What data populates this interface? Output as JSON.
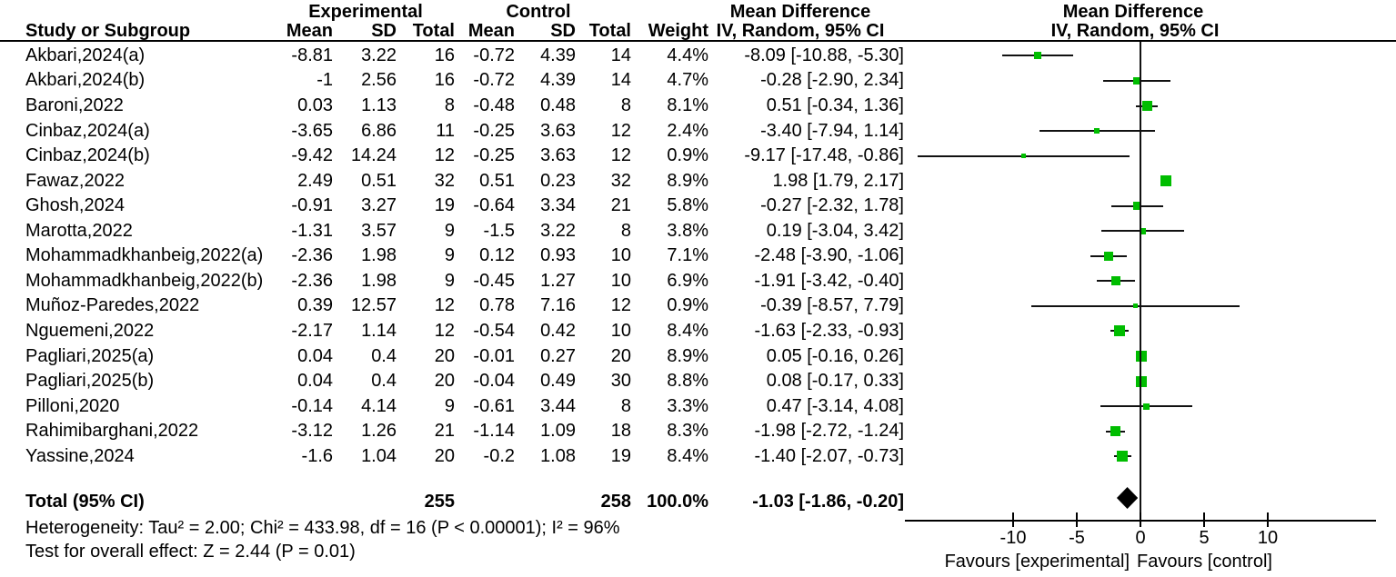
{
  "header": {
    "study_col": "Study or Subgroup",
    "group_experimental": "Experimental",
    "group_control": "Control",
    "col_mean": "Mean",
    "col_sd": "SD",
    "col_total": "Total",
    "col_weight": "Weight",
    "md_title": "Mean Difference",
    "md_subtitle": "IV, Random, 95% CI"
  },
  "colors": {
    "marker_green": "#00bd00",
    "line_black": "#111111",
    "diamond_black": "#000000"
  },
  "chart_data": {
    "type": "forest",
    "effect_measure": "Mean Difference",
    "method": "IV, Random, 95% CI",
    "axis": {
      "min": -18.5,
      "max": 18.5,
      "tick_values": [
        -10,
        -5,
        0,
        5,
        10
      ],
      "tick_labels": [
        "-10",
        "-5",
        "0",
        "5",
        "10"
      ],
      "favours_left": "Favours [experimental]",
      "favours_right": "Favours [control]"
    },
    "studies": [
      {
        "name": "Akbari,2024(a)",
        "mean_e": "-8.81",
        "sd_e": "3.22",
        "total_e": "16",
        "mean_c": "-0.72",
        "sd_c": "4.39",
        "total_c": "14",
        "weight": "4.4%",
        "ci_text": "-8.09 [-10.88, -5.30]",
        "md": -8.09,
        "lo": -10.88,
        "hi": -5.3,
        "weight_pct": 4.4
      },
      {
        "name": "Akbari,2024(b)",
        "mean_e": "-1",
        "sd_e": "2.56",
        "total_e": "16",
        "mean_c": "-0.72",
        "sd_c": "4.39",
        "total_c": "14",
        "weight": "4.7%",
        "ci_text": "-0.28 [-2.90, 2.34]",
        "md": -0.28,
        "lo": -2.9,
        "hi": 2.34,
        "weight_pct": 4.7
      },
      {
        "name": "Baroni,2022",
        "mean_e": "0.03",
        "sd_e": "1.13",
        "total_e": "8",
        "mean_c": "-0.48",
        "sd_c": "0.48",
        "total_c": "8",
        "weight": "8.1%",
        "ci_text": "0.51 [-0.34, 1.36]",
        "md": 0.51,
        "lo": -0.34,
        "hi": 1.36,
        "weight_pct": 8.1
      },
      {
        "name": "Cinbaz,2024(a)",
        "mean_e": "-3.65",
        "sd_e": "6.86",
        "total_e": "11",
        "mean_c": "-0.25",
        "sd_c": "3.63",
        "total_c": "12",
        "weight": "2.4%",
        "ci_text": "-3.40 [-7.94, 1.14]",
        "md": -3.4,
        "lo": -7.94,
        "hi": 1.14,
        "weight_pct": 2.4
      },
      {
        "name": "Cinbaz,2024(b)",
        "mean_e": "-9.42",
        "sd_e": "14.24",
        "total_e": "12",
        "mean_c": "-0.25",
        "sd_c": "3.63",
        "total_c": "12",
        "weight": "0.9%",
        "ci_text": "-9.17 [-17.48, -0.86]",
        "md": -9.17,
        "lo": -17.48,
        "hi": -0.86,
        "weight_pct": 0.9
      },
      {
        "name": "Fawaz,2022",
        "mean_e": "2.49",
        "sd_e": "0.51",
        "total_e": "32",
        "mean_c": "0.51",
        "sd_c": "0.23",
        "total_c": "32",
        "weight": "8.9%",
        "ci_text": "1.98 [1.79, 2.17]",
        "md": 1.98,
        "lo": 1.79,
        "hi": 2.17,
        "weight_pct": 8.9
      },
      {
        "name": "Ghosh,2024",
        "mean_e": "-0.91",
        "sd_e": "3.27",
        "total_e": "19",
        "mean_c": "-0.64",
        "sd_c": "3.34",
        "total_c": "21",
        "weight": "5.8%",
        "ci_text": "-0.27 [-2.32, 1.78]",
        "md": -0.27,
        "lo": -2.32,
        "hi": 1.78,
        "weight_pct": 5.8
      },
      {
        "name": "Marotta,2022",
        "mean_e": "-1.31",
        "sd_e": "3.57",
        "total_e": "9",
        "mean_c": "-1.5",
        "sd_c": "3.22",
        "total_c": "8",
        "weight": "3.8%",
        "ci_text": "0.19 [-3.04, 3.42]",
        "md": 0.19,
        "lo": -3.04,
        "hi": 3.42,
        "weight_pct": 3.8
      },
      {
        "name": "Mohammadkhanbeig,2022(a)",
        "mean_e": "-2.36",
        "sd_e": "1.98",
        "total_e": "9",
        "mean_c": "0.12",
        "sd_c": "0.93",
        "total_c": "10",
        "weight": "7.1%",
        "ci_text": "-2.48 [-3.90, -1.06]",
        "md": -2.48,
        "lo": -3.9,
        "hi": -1.06,
        "weight_pct": 7.1
      },
      {
        "name": "Mohammadkhanbeig,2022(b)",
        "mean_e": "-2.36",
        "sd_e": "1.98",
        "total_e": "9",
        "mean_c": "-0.45",
        "sd_c": "1.27",
        "total_c": "10",
        "weight": "6.9%",
        "ci_text": "-1.91 [-3.42, -0.40]",
        "md": -1.91,
        "lo": -3.42,
        "hi": -0.4,
        "weight_pct": 6.9
      },
      {
        "name": "Muñoz-Paredes,2022",
        "mean_e": "0.39",
        "sd_e": "12.57",
        "total_e": "12",
        "mean_c": "0.78",
        "sd_c": "7.16",
        "total_c": "12",
        "weight": "0.9%",
        "ci_text": "-0.39 [-8.57, 7.79]",
        "md": -0.39,
        "lo": -8.57,
        "hi": 7.79,
        "weight_pct": 0.9
      },
      {
        "name": "Nguemeni,2022",
        "mean_e": "-2.17",
        "sd_e": "1.14",
        "total_e": "12",
        "mean_c": "-0.54",
        "sd_c": "0.42",
        "total_c": "10",
        "weight": "8.4%",
        "ci_text": "-1.63 [-2.33, -0.93]",
        "md": -1.63,
        "lo": -2.33,
        "hi": -0.93,
        "weight_pct": 8.4
      },
      {
        "name": "Pagliari,2025(a)",
        "mean_e": "0.04",
        "sd_e": "0.4",
        "total_e": "20",
        "mean_c": "-0.01",
        "sd_c": "0.27",
        "total_c": "20",
        "weight": "8.9%",
        "ci_text": "0.05 [-0.16, 0.26]",
        "md": 0.05,
        "lo": -0.16,
        "hi": 0.26,
        "weight_pct": 8.9
      },
      {
        "name": "Pagliari,2025(b)",
        "mean_e": "0.04",
        "sd_e": "0.4",
        "total_e": "20",
        "mean_c": "-0.04",
        "sd_c": "0.49",
        "total_c": "30",
        "weight": "8.8%",
        "ci_text": "0.08 [-0.17, 0.33]",
        "md": 0.08,
        "lo": -0.17,
        "hi": 0.33,
        "weight_pct": 8.8
      },
      {
        "name": "Pilloni,2020",
        "mean_e": "-0.14",
        "sd_e": "4.14",
        "total_e": "9",
        "mean_c": "-0.61",
        "sd_c": "3.44",
        "total_c": "8",
        "weight": "3.3%",
        "ci_text": "0.47 [-3.14, 4.08]",
        "md": 0.47,
        "lo": -3.14,
        "hi": 4.08,
        "weight_pct": 3.3
      },
      {
        "name": "Rahimibarghani,2022",
        "mean_e": "-3.12",
        "sd_e": "1.26",
        "total_e": "21",
        "mean_c": "-1.14",
        "sd_c": "1.09",
        "total_c": "18",
        "weight": "8.3%",
        "ci_text": "-1.98 [-2.72, -1.24]",
        "md": -1.98,
        "lo": -2.72,
        "hi": -1.24,
        "weight_pct": 8.3
      },
      {
        "name": "Yassine,2024",
        "mean_e": "-1.6",
        "sd_e": "1.04",
        "total_e": "20",
        "mean_c": "-0.2",
        "sd_c": "1.08",
        "total_c": "19",
        "weight": "8.4%",
        "ci_text": "-1.40 [-2.07, -0.73]",
        "md": -1.4,
        "lo": -2.07,
        "hi": -0.73,
        "weight_pct": 8.4
      }
    ],
    "total": {
      "label": "Total (95% CI)",
      "total_e": "255",
      "total_c": "258",
      "weight": "100.0%",
      "ci_text": "-1.03 [-1.86, -0.20]",
      "md": -1.03,
      "lo": -1.86,
      "hi": -0.2
    },
    "footnotes": {
      "heterogeneity": "Heterogeneity: Tau² = 2.00; Chi² = 433.98, df = 16 (P < 0.00001); I² = 96%",
      "overall_effect": "Test for overall effect: Z = 2.44 (P = 0.01)"
    }
  }
}
